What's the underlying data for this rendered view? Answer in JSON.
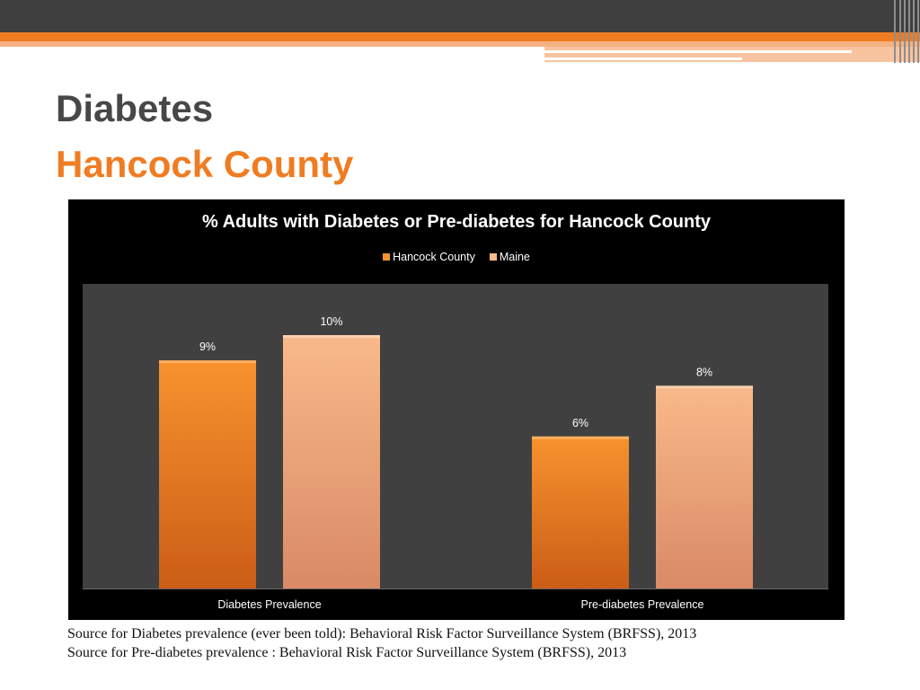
{
  "slide": {
    "title": "Diabetes",
    "subtitle": "Hancock County",
    "sources": [
      "Source for Diabetes prevalence (ever been told): Behavioral Risk Factor Surveillance System (BRFSS), 2013",
      "Source for Pre-diabetes prevalence : Behavioral Risk Factor Surveillance System (BRFSS), 2013"
    ]
  },
  "colors": {
    "accent": "#f07c22",
    "title_gray": "#474747",
    "chart_background": "#000000",
    "plot_background": "#404040",
    "hancock_top": "#f7922e",
    "hancock_bottom": "#cb5d16",
    "maine_top": "#f9b98a",
    "maine_bottom": "#d98a66"
  },
  "chart_data": {
    "type": "bar",
    "title": "% Adults with Diabetes or Pre-diabetes for Hancock County",
    "categories": [
      "Diabetes Prevalence",
      "Pre-diabetes Prevalence"
    ],
    "series": [
      {
        "name": "Hancock County",
        "values": [
          9,
          6
        ],
        "labels": [
          "9%",
          "6%"
        ]
      },
      {
        "name": "Maine",
        "values": [
          10,
          8
        ],
        "labels": [
          "10%",
          "8%"
        ]
      }
    ],
    "unit": "%",
    "ylim": [
      0,
      12
    ],
    "legend_position": "top-center",
    "grid": false,
    "value_axis_shown": false
  }
}
